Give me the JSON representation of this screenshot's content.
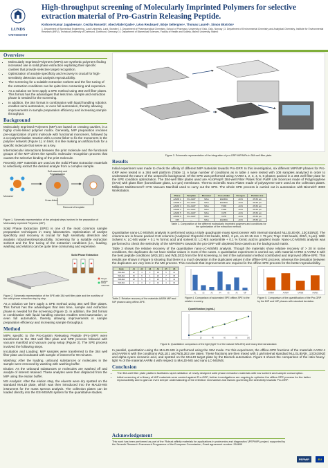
{
  "header": {
    "title": "High-throughput screening of Molecularly Imprinted Polymers for selective extraction material of Pro-Gastrin Releasing Peptide.",
    "logo_text_1": "LUNDS",
    "logo_text_2": "UNIVERSITET",
    "authors": "Kishore Kumar Jagadeesan¹, Cecilia Rossetti², Abed Abdel Qader³, Léon Reubsaet², Börje Sellergren⁴, Thomas Laurell¹, Simon Ekström¹",
    "affiliations": "1. Department of Biomedical Engineering, Lund University, Lund, Sweden | 2. Department of Pharmaceutical Chemistry, School of Pharmacy, University of Oslo, Oslo, Norway | 3. Department of Environmental Chemistry and Analytical Chemistry, Institute for Environmental Research (INFU), Technical University of Dortmund, Dortmund, Germany | 4. Department of Biomedical Sciences, Faculty of Health and Society, Malmö University, Malmö"
  },
  "overview": {
    "title": "Overview",
    "bullets": [
      "Molecularly Imprinted Polymers (MIPs) are synthetic polymers finding increased use in solid phase extraction exploiting their specific cavities that provide selective target recognition.",
      "Optimization of analyte specificity and recovery is crucial for high-sensitivity detection and analysis reproducibility.",
      "The screening for a suitable extraction sorbent and the fine tuning of the extraction conditions can be quite time consuming and expensive.",
      "As a solution we here apply a SPE method using 384-well filter plates. This format has the advantages that less time, sample and extraction phase is needed for the screening.",
      "In addition, the 384 format in combination with liquid handling robotics enables semi-automation, or even full automation, thereby allowing improvements in sample preparation efficiency and increasing sample throughput."
    ]
  },
  "background": {
    "title": "Background",
    "p1": "Molecularly Imprinted Polymers (MIP) are based on creating cavities, in a highly cross-linked polymer matrix. Generally, MIP preparation involves pre-organization of print molecule with functional monomers, followed by a co-polymerization reaction with a cross-linker to fix the monomers in the polymer network (Figure 1). In brief, it is like making an artificial lock for a specific molecule that serve as a key.",
    "p2": "Intermolecular interactions between the print molecule and the functional groups of the MIP drives the specific molecular recognition process that causes the selective binding of the print molecule.",
    "p3": "Recently, MIP materials are used as the Solid Phase Extraction materials to selectively extract the desired analyte from a complex sample.",
    "fig1_labels": [
      "Self-assembly and Polymerization",
      "Cross-linker",
      "Monomer",
      "Removal of template"
    ],
    "fig1_caption": "Figure 1. Schematic representation of the principal steps involved in the preparation of Molecularly Imprinted Polymers (MIP).",
    "spe_text": "Solid Phase Extraction (SPE) is one of the most common sample preparation techniques in many laboratories. Optimization of analyte specificity and recovery is crucial for high sensitivity detection and analysis robustness/reproducibility. Screening for a suitable extraction sorbent and the fine tuning of the extraction conditions (i.e., loading, washing and elution) can be quite time consuming and expensive.",
    "fig2_labels": [
      "Solid Phase Extraction",
      "Target analyte",
      "Other materials"
    ],
    "fig2_caption": "Figure 2. Schematic representation of the SPE with 384 well filter plate and the workflow of the solid phase extraction step by step.",
    "solution_text": "As a solution we here apply a SPE method using 384 well filter plates. This format has the advantages that less time, sample and extraction phase is needed for the screening (Figure 2). In addition, the 384 format in combination with liquid handling robotics enables semi-automation, or even full automation, thereby allowing improvements in sample preparation efficiency and increasing sample throughput."
  },
  "method": {
    "title": "Method",
    "p1": "MIPs specific to the Pro-Gastrin Releasing Peptide (Pro-GRP) were transferred to the 384 well filter plate and SPE process followed with vacuum manifold and vacuum pump setup (Figure 3). The SPE process involved the following steps.",
    "p2": "Incubation and Loading: MIP samples were transferred to the 384 well filter plate and incubated with sample of interest for 90 minutes.",
    "p3": "Washing: After the loading, unbound substances or molecules in the sample were removed by washing with washing buffer.",
    "p4": "Elution: As the unbound substances or molecules are washed off and analyte of interest retained. These analytes were then displaced from the MIP using the elution buffer.",
    "p5": "MS Analysis: After the elution step, the eluents were dry spotted on the standard MALDI plate, which was then introduced into the MALDI-MS instrument for the mass spectra analysis. The collection plates can be loaded directly into the ESI-MS/MS system for the quantitative studies."
  },
  "fig3_caption": "Figure 3. Schematic representation of the integration of pro-GRP MIP/NIPs in 384 well filter plate.",
  "results": {
    "title": "Results",
    "p1": "Initial experiment was made to check the affinity of different MIP materials towards Pro-GRP. In this investigation, six different MIP/NIP phases for Pro-GRP were tested in a 384 well platform (Table 1). A large number of conditions as in table 4 were tested with 108 samples analyzed in order to understand the nature of the unspecific background. Of the SPE was performed using AARM 1, 2, 3, 4, 5, 6 phases packed in a 384 well filter plate for the SPE condition optimization. The 384-well filter plates used are AcroPrep® 384-well Filter Plates from Pall® Life Sciences made of Polypropylene (SAN) with glass fiber (borosilicate glass, 1.0 µm) membrane. Thermo Scientific Nunc Plates made of polystyrene were used as the collection plates. Millipore MultiScreen® HTS Vacuum Manifold used to carry out the SPE. The whole SPE process is carried out in automation with Biomek® 3000 Workstation.",
    "table1_caption": "Table 1. Composition of the different molecularly imprinted polymers and conditions for the optimization of the extraction method.",
    "table1_headers": [
      "Phase",
      "Template",
      "Monomer",
      "Cross-linker",
      "Porogen",
      "Particle size"
    ],
    "table1_rows": [
      [
        "AARM 1",
        "Pro-GRP",
        "MAA",
        "EGDMA",
        "ACN",
        "25-50 µm"
      ],
      [
        "AARM 2",
        "Pro-GRP",
        "MAA",
        "EGDMA",
        "ACN",
        "25-50 µm"
      ],
      [
        "AARM 3",
        "Pro-GRP",
        "MAA",
        "TRIM",
        "ACN",
        "25-50 µm"
      ],
      [
        "AARM 4",
        "Pro-GRP",
        "MAA",
        "TRIM",
        "ACN",
        "25-50 µm"
      ],
      [
        "AARM 5",
        "Pro-GRP",
        "MAA",
        "DVB",
        "ACN",
        "25-50 µm"
      ],
      [
        "AARM 6",
        "Pro-GRP",
        "MAA",
        "DVB",
        "ACN",
        "25-50 µm"
      ],
      [
        "NIP",
        "—",
        "MAA",
        "EGDMA",
        "ACN",
        "25-50 µm"
      ]
    ],
    "p2": "Quantitative nano-LC-MS/MS analysis is performed using a triple quadrupole mass spectrometer with internal standard NLLGLIEA[K_13C615N2]. The columns are in-house packed C18 columns (Analytical: ReproSil C18 beads, 100Å, 3 µm, ca 10-15 mm × 75 µm; Trap: C18 beads, 200Å, 5 µm). With Solvent A: LC-MS water + 0.1 % formic acid and solvent B: LC-MS acetonitrile + 0.1 % formic acid in gradient mode. Nano-LC-MS/MS analysis was performed to check the selectivity of the MIPs/NIPs towards the pro-GRP with depleted beta-casein as the background matrix.",
    "p3": "Table 2 shows the relative recovery of the quantitative nano-LC-MS/MS analysis. Though the materials show relative recovery of > 20 in some conditions, the duplicates do not have similar values in most of the cases. A quantitative experiment is carried out, with material AARM 4 AARM 6 with the best peptide conditions (W2L1E1 and W3L2E2) from the first screening, to test if the automation method contributed and improved offline-SPE. This results are shown in Figure 5 showing that there is a much deviation in the duplicates values in the offline-SPE process, whereas the deviation between the duplicates are very less in the MS process. This conclude that improvements are required in the offline-SPE process for the better reproducibility.",
    "table2_caption": "Table 2. Relative recovery of the materials AARM MIP and NIP phases using offline-SPE.",
    "fig5a_caption": "Figure 4. Comparison of automated SPE offline-SPE to the relative recovery.",
    "fig5b_caption": "Figure 5. Comparison of the quantification of the Pro-GRP by the MIP and NIP phases with standard deviation.",
    "chart_title": "Quantification (ng/mL)",
    "fig6_caption": "Figure 6. Quantitative comparison of the light (light % of the natural W3L2E2) and heavy internal standard.",
    "p4": "In parallel, quantitation using the MALDI-MS is performed using the SIM mode. For this experiment, the offline-SPE fractions of the materials AARM 4 and AARM 6 with the conditions W2L1E1 and W3L2E2 are taken. These fractions are then mixed with 2 µM internal standard NLLGLIEA[K_13C615N2] and alpha-cyano cinnamic acid, and spotted on the MALDI target plate by the Biomek automation. Figure 6 shows the comparison of the ratio heavy: light % of the material AARM 4 with respect to MALDI-MS and nano LC-MS/MS."
  },
  "conclusion": {
    "title": "Conclusion",
    "bullets": [
      "The 384-well filter plate platform facilitates rapid validation of newly designed solid phase extraction materials with low sorbent and sample consumption.",
      "Initial screening of a library of MIP materials were carried against Pro-GRP, further investigations are ongoing to optimize the offline-SPE process for the better reproducibility and to gain an even deeper understanding of the retention mechanism and factors governing the selectivity towards Pro-GRP."
    ]
  },
  "acknowledgement": {
    "title": "Acknowledgement",
    "text": "This work has been performed as part of the 'Robust affinity materials for applications in proteomics and diagnostics' (PEPMIP) project, supported by the Seventh Research Framework Programme of the European Commission, Grant agreement number: 264699"
  },
  "footer": {
    "logo1": "PEPMIP",
    "logo2": "EU"
  },
  "colors": {
    "accent": "#7fae3a",
    "title": "#1c3f74"
  },
  "chart_data": [
    {
      "type": "bar",
      "title": "",
      "categories": [
        "A1",
        "A2",
        "A3",
        "A4",
        "A5",
        "A6",
        "NIP"
      ],
      "series": [
        {
          "values": [
            18,
            6,
            4,
            22,
            7,
            15,
            3
          ]
        }
      ],
      "ylim": [
        0,
        25
      ]
    },
    {
      "type": "bar",
      "title": "",
      "categories": [
        "AARM4 W2L1E1",
        "AARM4 W3L2E2",
        "AARM6 W2L1E1",
        "AARM6 W3L2E2"
      ],
      "series": [
        {
          "values": [
            12,
            16,
            9,
            14
          ]
        }
      ],
      "ylim": [
        0,
        20
      ]
    },
    {
      "type": "scatter",
      "title": "Quantification (ng/mL)",
      "x": [
        0,
        20,
        40,
        60,
        80,
        100
      ],
      "y": [
        0,
        0.2,
        0.45,
        0.62,
        0.85,
        1.05
      ],
      "ylim": [
        0,
        1.2
      ]
    }
  ]
}
